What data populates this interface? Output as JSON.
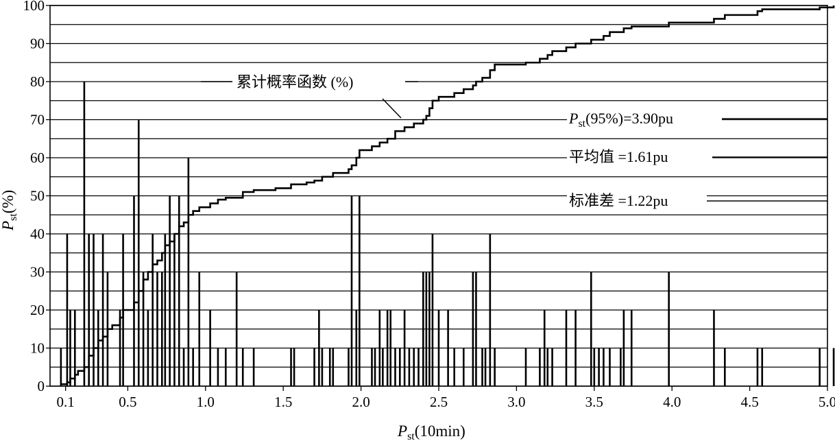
{
  "chart_data": {
    "type": "bar",
    "xlabel_main": "P",
    "xlabel_sub": "st",
    "xlabel_suffix": "(10min)",
    "ylabel_main": "P",
    "ylabel_sub": "st",
    "ylabel_suffix": "(%)",
    "xlim": [
      0.0,
      5.0
    ],
    "ylim": [
      0,
      100
    ],
    "x_ticks": [
      {
        "v": 0.1,
        "label": "0.1"
      },
      {
        "v": 0.5,
        "label": "0.5"
      },
      {
        "v": 1.0,
        "label": "1.0"
      },
      {
        "v": 1.5,
        "label": "1.5"
      },
      {
        "v": 2.0,
        "label": "2.0"
      },
      {
        "v": 2.5,
        "label": "2.5"
      },
      {
        "v": 3.0,
        "label": "3.0"
      },
      {
        "v": 3.5,
        "label": "3.5"
      },
      {
        "v": 4.0,
        "label": "4.0"
      },
      {
        "v": 4.5,
        "label": "4.5"
      },
      {
        "v": 5.0,
        "label": "5.0"
      }
    ],
    "y_ticks": [
      0,
      10,
      20,
      30,
      40,
      50,
      60,
      70,
      80,
      90,
      100
    ],
    "y_grid": [
      0,
      5,
      10,
      15,
      20,
      25,
      30,
      35,
      40,
      45,
      50,
      55,
      60,
      65,
      70,
      75,
      80,
      85,
      90,
      95,
      100
    ],
    "bars": [
      {
        "x": 0.07,
        "y": 10
      },
      {
        "x": 0.11,
        "y": 40
      },
      {
        "x": 0.13,
        "y": 20
      },
      {
        "x": 0.16,
        "y": 20
      },
      {
        "x": 0.22,
        "y": 80
      },
      {
        "x": 0.25,
        "y": 40
      },
      {
        "x": 0.28,
        "y": 40
      },
      {
        "x": 0.31,
        "y": 20
      },
      {
        "x": 0.34,
        "y": 40
      },
      {
        "x": 0.37,
        "y": 30
      },
      {
        "x": 0.45,
        "y": 20
      },
      {
        "x": 0.47,
        "y": 40
      },
      {
        "x": 0.54,
        "y": 50
      },
      {
        "x": 0.57,
        "y": 70
      },
      {
        "x": 0.6,
        "y": 30
      },
      {
        "x": 0.63,
        "y": 20
      },
      {
        "x": 0.66,
        "y": 40
      },
      {
        "x": 0.69,
        "y": 30
      },
      {
        "x": 0.72,
        "y": 30
      },
      {
        "x": 0.74,
        "y": 40
      },
      {
        "x": 0.77,
        "y": 50
      },
      {
        "x": 0.8,
        "y": 40
      },
      {
        "x": 0.83,
        "y": 50
      },
      {
        "x": 0.86,
        "y": 10
      },
      {
        "x": 0.89,
        "y": 60
      },
      {
        "x": 0.92,
        "y": 10
      },
      {
        "x": 0.96,
        "y": 30
      },
      {
        "x": 1.03,
        "y": 20
      },
      {
        "x": 1.08,
        "y": 10
      },
      {
        "x": 1.13,
        "y": 10
      },
      {
        "x": 1.2,
        "y": 30
      },
      {
        "x": 1.24,
        "y": 10
      },
      {
        "x": 1.31,
        "y": 10
      },
      {
        "x": 1.55,
        "y": 10
      },
      {
        "x": 1.57,
        "y": 10
      },
      {
        "x": 1.7,
        "y": 10
      },
      {
        "x": 1.73,
        "y": 20
      },
      {
        "x": 1.75,
        "y": 10
      },
      {
        "x": 1.8,
        "y": 10
      },
      {
        "x": 1.82,
        "y": 10
      },
      {
        "x": 1.92,
        "y": 10
      },
      {
        "x": 1.94,
        "y": 50
      },
      {
        "x": 1.97,
        "y": 20
      },
      {
        "x": 1.99,
        "y": 50
      },
      {
        "x": 2.07,
        "y": 10
      },
      {
        "x": 2.09,
        "y": 10
      },
      {
        "x": 2.12,
        "y": 20
      },
      {
        "x": 2.14,
        "y": 10
      },
      {
        "x": 2.17,
        "y": 20
      },
      {
        "x": 2.19,
        "y": 20
      },
      {
        "x": 2.22,
        "y": 10
      },
      {
        "x": 2.25,
        "y": 10
      },
      {
        "x": 2.28,
        "y": 20
      },
      {
        "x": 2.31,
        "y": 10
      },
      {
        "x": 2.34,
        "y": 10
      },
      {
        "x": 2.37,
        "y": 10
      },
      {
        "x": 2.4,
        "y": 30
      },
      {
        "x": 2.42,
        "y": 30
      },
      {
        "x": 2.44,
        "y": 30
      },
      {
        "x": 2.46,
        "y": 40
      },
      {
        "x": 2.5,
        "y": 20
      },
      {
        "x": 2.56,
        "y": 20
      },
      {
        "x": 2.6,
        "y": 10
      },
      {
        "x": 2.66,
        "y": 10
      },
      {
        "x": 2.72,
        "y": 30
      },
      {
        "x": 2.74,
        "y": 30
      },
      {
        "x": 2.78,
        "y": 10
      },
      {
        "x": 2.8,
        "y": 10
      },
      {
        "x": 2.83,
        "y": 40
      },
      {
        "x": 2.86,
        "y": 10
      },
      {
        "x": 3.06,
        "y": 10
      },
      {
        "x": 3.15,
        "y": 10
      },
      {
        "x": 3.18,
        "y": 20
      },
      {
        "x": 3.2,
        "y": 10
      },
      {
        "x": 3.23,
        "y": 10
      },
      {
        "x": 3.32,
        "y": 20
      },
      {
        "x": 3.38,
        "y": 20
      },
      {
        "x": 3.48,
        "y": 30
      },
      {
        "x": 3.5,
        "y": 10
      },
      {
        "x": 3.53,
        "y": 10
      },
      {
        "x": 3.56,
        "y": 10
      },
      {
        "x": 3.6,
        "y": 10
      },
      {
        "x": 3.67,
        "y": 10
      },
      {
        "x": 3.69,
        "y": 20
      },
      {
        "x": 3.74,
        "y": 20
      },
      {
        "x": 3.98,
        "y": 30
      },
      {
        "x": 4.27,
        "y": 20
      },
      {
        "x": 4.34,
        "y": 10
      },
      {
        "x": 4.55,
        "y": 10
      },
      {
        "x": 4.58,
        "y": 10
      },
      {
        "x": 4.95,
        "y": 10
      },
      {
        "x": 5.04,
        "y": 10
      }
    ],
    "cdf": [
      [
        0.07,
        0.5
      ],
      [
        0.11,
        1
      ],
      [
        0.13,
        2
      ],
      [
        0.16,
        3
      ],
      [
        0.18,
        4
      ],
      [
        0.22,
        5
      ],
      [
        0.25,
        8
      ],
      [
        0.28,
        10
      ],
      [
        0.31,
        12
      ],
      [
        0.34,
        13
      ],
      [
        0.37,
        15
      ],
      [
        0.4,
        16
      ],
      [
        0.45,
        18
      ],
      [
        0.47,
        20
      ],
      [
        0.54,
        22
      ],
      [
        0.57,
        25
      ],
      [
        0.6,
        28
      ],
      [
        0.63,
        30
      ],
      [
        0.66,
        32
      ],
      [
        0.69,
        33
      ],
      [
        0.72,
        35
      ],
      [
        0.74,
        37
      ],
      [
        0.77,
        38
      ],
      [
        0.8,
        40
      ],
      [
        0.83,
        42
      ],
      [
        0.86,
        43
      ],
      [
        0.89,
        45
      ],
      [
        0.92,
        46
      ],
      [
        0.96,
        47
      ],
      [
        1.03,
        48
      ],
      [
        1.08,
        49
      ],
      [
        1.13,
        49.5
      ],
      [
        1.24,
        51
      ],
      [
        1.31,
        51.5
      ],
      [
        1.45,
        52
      ],
      [
        1.55,
        53
      ],
      [
        1.65,
        53.5
      ],
      [
        1.7,
        54
      ],
      [
        1.75,
        55
      ],
      [
        1.82,
        56
      ],
      [
        1.92,
        57
      ],
      [
        1.94,
        58
      ],
      [
        1.97,
        60
      ],
      [
        1.99,
        62
      ],
      [
        2.07,
        63
      ],
      [
        2.12,
        64
      ],
      [
        2.17,
        65
      ],
      [
        2.22,
        67
      ],
      [
        2.28,
        68
      ],
      [
        2.34,
        69
      ],
      [
        2.4,
        70
      ],
      [
        2.42,
        71
      ],
      [
        2.44,
        73
      ],
      [
        2.46,
        75
      ],
      [
        2.5,
        76
      ],
      [
        2.6,
        77
      ],
      [
        2.66,
        78
      ],
      [
        2.72,
        79
      ],
      [
        2.74,
        80
      ],
      [
        2.78,
        81
      ],
      [
        2.83,
        83
      ],
      [
        2.86,
        84.5
      ],
      [
        3.06,
        85
      ],
      [
        3.15,
        86
      ],
      [
        3.2,
        87
      ],
      [
        3.23,
        88
      ],
      [
        3.32,
        89
      ],
      [
        3.38,
        90
      ],
      [
        3.48,
        91
      ],
      [
        3.56,
        92
      ],
      [
        3.6,
        93
      ],
      [
        3.69,
        94
      ],
      [
        3.74,
        94.5
      ],
      [
        3.98,
        95.5
      ],
      [
        4.27,
        96.5
      ],
      [
        4.34,
        97.5
      ],
      [
        4.55,
        98.5
      ],
      [
        4.58,
        99
      ],
      [
        4.95,
        99.5
      ],
      [
        5.04,
        100
      ]
    ],
    "annotations": {
      "cdf_label": "累计概率函数 (%)",
      "p95_main": "P",
      "p95_sub": "st",
      "p95_rest": "(95%)=3.90pu",
      "mean": "平均值 =1.61pu",
      "std": "标准差 =1.22pu"
    }
  }
}
